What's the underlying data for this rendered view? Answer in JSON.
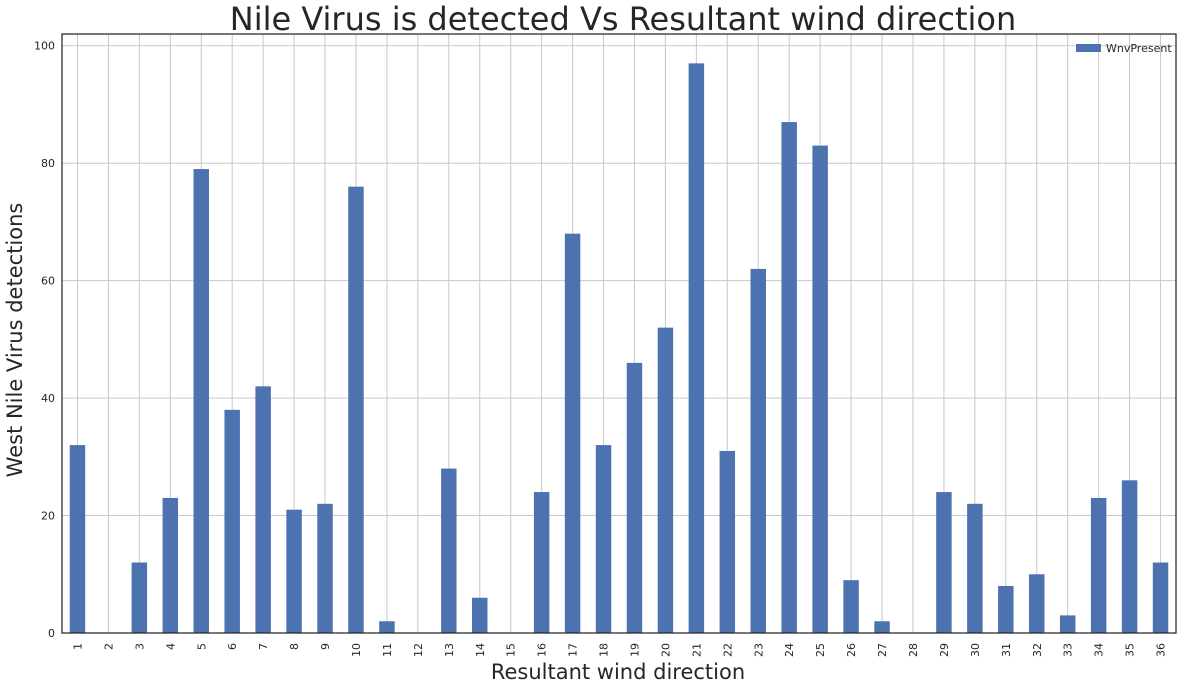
{
  "chart_data": {
    "type": "bar",
    "title": "Nile Virus is detected Vs Resultant wind direction",
    "xlabel": "Resultant wind direction",
    "ylabel": "West Nile Virus detections",
    "categories": [
      "1",
      "2",
      "3",
      "4",
      "5",
      "6",
      "7",
      "8",
      "9",
      "10",
      "11",
      "12",
      "13",
      "14",
      "15",
      "16",
      "17",
      "18",
      "19",
      "20",
      "21",
      "22",
      "23",
      "24",
      "25",
      "26",
      "27",
      "28",
      "29",
      "30",
      "31",
      "32",
      "33",
      "34",
      "35",
      "36"
    ],
    "series": [
      {
        "name": "WnvPresent",
        "color": "#4c72b0",
        "values": [
          32,
          0,
          12,
          23,
          79,
          38,
          42,
          21,
          22,
          76,
          2,
          0,
          28,
          6,
          0,
          24,
          68,
          32,
          46,
          52,
          97,
          31,
          62,
          87,
          83,
          9,
          2,
          0,
          24,
          22,
          8,
          10,
          3,
          23,
          26,
          12
        ]
      }
    ],
    "ylim": [
      0,
      102
    ],
    "yticks": [
      0,
      20,
      40,
      60,
      80,
      100
    ],
    "grid": true,
    "legend_position": "top-right"
  }
}
